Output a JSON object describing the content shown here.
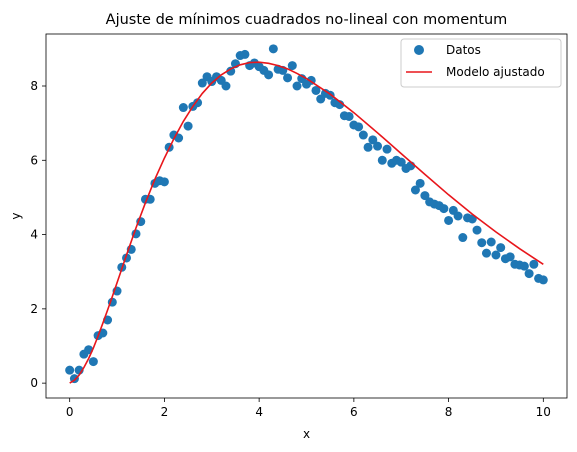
{
  "chart_data": {
    "type": "scatter",
    "title": "Ajuste de mínimos cuadrados no-lineal con momentum",
    "xlabel": "x",
    "ylabel": "y",
    "xlim": [
      -0.5,
      10.5
    ],
    "ylim": [
      -0.4,
      9.4
    ],
    "xticks": [
      "0",
      "2",
      "4",
      "6",
      "8",
      "10"
    ],
    "yticks": [
      "0",
      "2",
      "4",
      "6",
      "8"
    ],
    "grid": false,
    "legend_position": "top-right",
    "legend": [
      "Datos",
      "Modelo ajustado"
    ],
    "colors": {
      "scatter": "#1f77b4",
      "line": "#e8161b"
    },
    "series": [
      {
        "name": "Datos",
        "kind": "scatter",
        "x": [
          0.0,
          0.1,
          0.2,
          0.3,
          0.4,
          0.5,
          0.6,
          0.7,
          0.8,
          0.9,
          1.0,
          1.1,
          1.2,
          1.3,
          1.4,
          1.5,
          1.6,
          1.7,
          1.8,
          1.9,
          2.0,
          2.1,
          2.2,
          2.3,
          2.4,
          2.5,
          2.6,
          2.7,
          2.8,
          2.9,
          3.0,
          3.1,
          3.2,
          3.3,
          3.4,
          3.5,
          3.6,
          3.7,
          3.8,
          3.9,
          4.0,
          4.1,
          4.2,
          4.3,
          4.4,
          4.5,
          4.6,
          4.7,
          4.8,
          4.9,
          5.0,
          5.1,
          5.2,
          5.3,
          5.4,
          5.5,
          5.6,
          5.7,
          5.8,
          5.9,
          6.0,
          6.1,
          6.2,
          6.3,
          6.4,
          6.5,
          6.6,
          6.7,
          6.8,
          6.9,
          7.0,
          7.1,
          7.2,
          7.3,
          7.4,
          7.5,
          7.6,
          7.7,
          7.8,
          7.9,
          8.0,
          8.1,
          8.2,
          8.3,
          8.4,
          8.5,
          8.6,
          8.7,
          8.8,
          8.9,
          9.0,
          9.1,
          9.2,
          9.3,
          9.4,
          9.5,
          9.6,
          9.7,
          9.8,
          9.9,
          10.0
        ],
        "y": [
          0.35,
          0.12,
          0.35,
          0.78,
          0.9,
          0.58,
          1.28,
          1.35,
          1.7,
          2.18,
          2.48,
          3.12,
          3.37,
          3.6,
          4.02,
          4.35,
          4.95,
          4.95,
          5.38,
          5.45,
          5.42,
          6.35,
          6.68,
          6.6,
          7.42,
          6.92,
          7.45,
          7.55,
          8.08,
          8.25,
          8.12,
          8.25,
          8.15,
          8.0,
          8.4,
          8.6,
          8.82,
          8.85,
          8.55,
          8.62,
          8.52,
          8.42,
          8.3,
          9.0,
          8.45,
          8.42,
          8.22,
          8.55,
          8.0,
          8.2,
          8.05,
          8.15,
          7.88,
          7.65,
          7.8,
          7.75,
          7.55,
          7.5,
          7.2,
          7.18,
          6.95,
          6.9,
          6.68,
          6.35,
          6.55,
          6.38,
          6.0,
          6.3,
          5.92,
          6.0,
          5.95,
          5.78,
          5.85,
          5.2,
          5.38,
          5.05,
          4.88,
          4.82,
          4.78,
          4.7,
          4.38,
          4.65,
          4.5,
          3.92,
          4.45,
          4.42,
          4.12,
          3.78,
          3.5,
          3.8,
          3.45,
          3.65,
          3.35,
          3.4,
          3.2,
          3.18,
          3.15,
          2.95,
          3.2,
          2.82,
          2.78
        ]
      },
      {
        "name": "Modelo ajustado",
        "kind": "line",
        "x": [
          0.0,
          0.1,
          0.2,
          0.3,
          0.4,
          0.5,
          0.6,
          0.7,
          0.8,
          0.9,
          1.0,
          1.2,
          1.4,
          1.6,
          1.8,
          2.0,
          2.2,
          2.4,
          2.6,
          2.8,
          3.0,
          3.2,
          3.4,
          3.6,
          3.8,
          4.0,
          4.2,
          4.4,
          4.6,
          4.8,
          5.0,
          5.5,
          6.0,
          6.5,
          7.0,
          7.5,
          8.0,
          8.5,
          9.0,
          9.5,
          10.0
        ],
        "y": [
          0.0,
          0.08,
          0.22,
          0.42,
          0.66,
          0.95,
          1.27,
          1.61,
          1.97,
          2.33,
          2.7,
          3.45,
          4.18,
          4.86,
          5.49,
          6.06,
          6.58,
          7.05,
          7.45,
          7.8,
          8.08,
          8.3,
          8.46,
          8.57,
          8.63,
          8.64,
          8.61,
          8.55,
          8.46,
          8.34,
          8.2,
          7.78,
          7.28,
          6.74,
          6.18,
          5.62,
          5.07,
          4.55,
          4.07,
          3.62,
          3.2
        ]
      }
    ]
  }
}
